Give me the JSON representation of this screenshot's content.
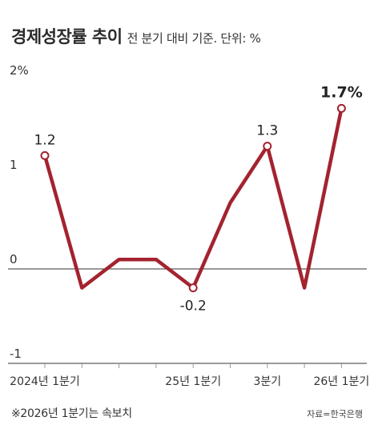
{
  "header": {
    "title": "경제성장률 추이",
    "subtitle": "전 분기 대비 기준. 단위: %"
  },
  "footnote": "※2026년 1분기는 속보치",
  "source": "자료=한국은행",
  "colors": {
    "line": "#a3232f",
    "axis": "#333333",
    "tick": "#999999",
    "marker_fill": "#ffffff"
  },
  "chart_data": {
    "type": "line",
    "title": "경제성장률 추이",
    "unit": "%",
    "ylim": [
      -1,
      2
    ],
    "y_ticks": [
      {
        "value": 2,
        "label": "2%"
      },
      {
        "value": 1,
        "label": "1"
      },
      {
        "value": 0,
        "label": "0"
      },
      {
        "value": -1,
        "label": "-1"
      }
    ],
    "x_tick_labels": [
      {
        "index": 0,
        "label": "2024년 1분기"
      },
      {
        "index": 4,
        "label": "25년 1분기"
      },
      {
        "index": 6,
        "label": "3분기"
      },
      {
        "index": 8,
        "label": "26년 1분기"
      }
    ],
    "series": [
      {
        "values": [
          1.2,
          -0.2,
          0.1,
          0.1,
          -0.2,
          0.7,
          1.3,
          -0.2,
          1.7
        ]
      }
    ],
    "data_labels": [
      {
        "index": 0,
        "label": "1.2",
        "bold": false
      },
      {
        "index": 4,
        "label": "-0.2",
        "bold": false
      },
      {
        "index": 6,
        "label": "1.3",
        "bold": false
      },
      {
        "index": 8,
        "label": "1.7%",
        "bold": true
      }
    ],
    "markers": [
      0,
      4,
      6,
      8
    ]
  }
}
